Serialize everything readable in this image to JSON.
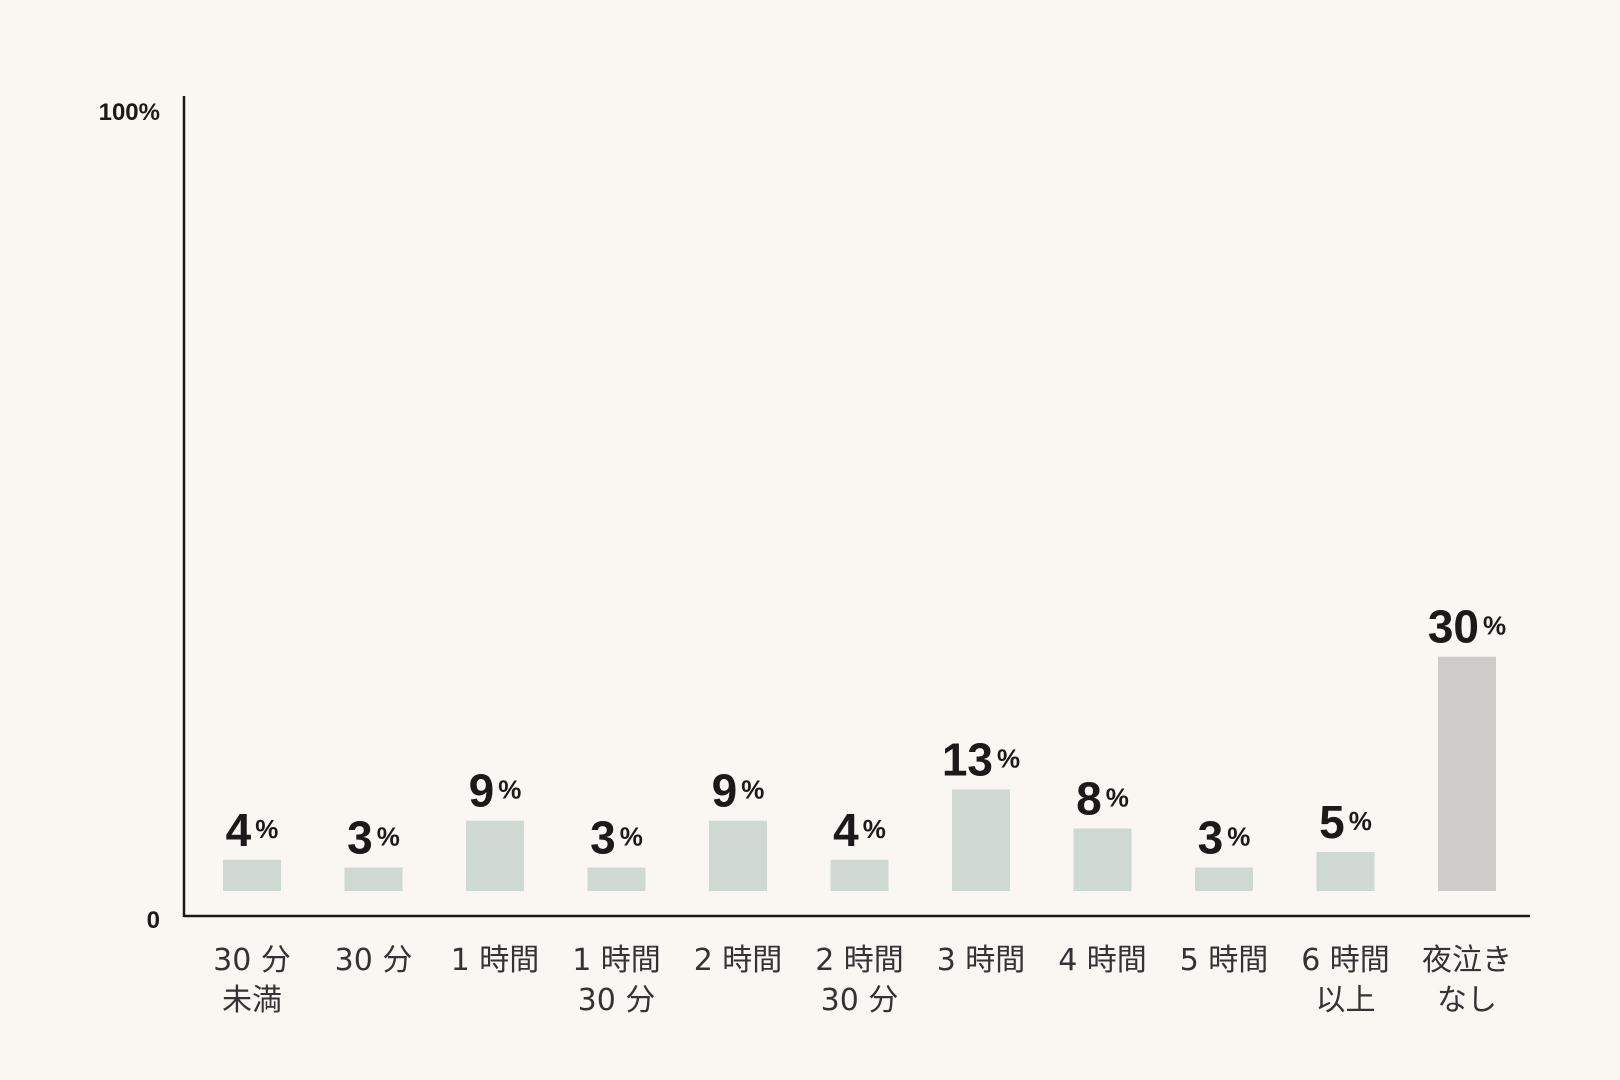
{
  "chart_data": {
    "type": "bar",
    "categories": [
      [
        "30 分",
        "未満"
      ],
      [
        "30 分"
      ],
      [
        "1 時間"
      ],
      [
        "1 時間",
        "30 分"
      ],
      [
        "2 時間"
      ],
      [
        "2 時間",
        "30 分"
      ],
      [
        "3 時間"
      ],
      [
        "4 時間"
      ],
      [
        "5 時間"
      ],
      [
        "6 時間",
        "以上"
      ],
      [
        "夜泣き",
        "なし"
      ]
    ],
    "values": [
      4,
      3,
      9,
      3,
      9,
      4,
      13,
      8,
      3,
      5,
      30
    ],
    "value_suffix": "%",
    "ylim": [
      0,
      100
    ],
    "y_tick_labels": [
      "0",
      "100%"
    ],
    "grid": false,
    "bar_colors": [
      "#cdd9d1",
      "#cdd9d1",
      "#cdd9d1",
      "#cdd9d1",
      "#cdd9d1",
      "#cdd9d1",
      "#cdd9d1",
      "#cdd9d1",
      "#cdd9d1",
      "#cdd9d1",
      "#cfcbc8"
    ],
    "axis_color": "#1c1a18",
    "background": "#faf7f2"
  }
}
